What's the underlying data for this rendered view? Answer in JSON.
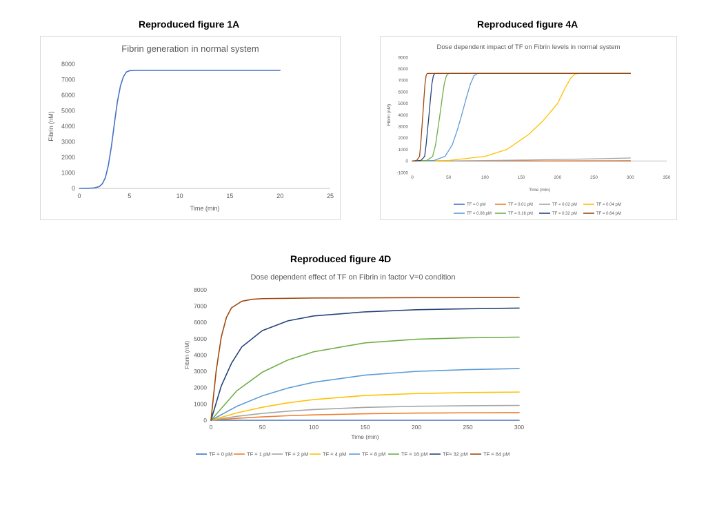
{
  "captions": {
    "fig1a": "Reproduced  figure 1A",
    "fig4a": "Reproduced  figure 4A",
    "fig4d": "Reproduced  figure 4D"
  },
  "chart_data": [
    {
      "id": "fig1a",
      "type": "line",
      "title": "Fibrin generation in normal system",
      "xlabel": "Time (min)",
      "ylabel": "Fibrin (nM)",
      "xlim": [
        0,
        25
      ],
      "ylim": [
        0,
        8000
      ],
      "xticks": [
        0,
        5,
        10,
        15,
        20,
        25
      ],
      "yticks": [
        0,
        1000,
        2000,
        3000,
        4000,
        5000,
        6000,
        7000,
        8000
      ],
      "grid": false,
      "legend": "none",
      "series": [
        {
          "name": "",
          "color": "#4472c4",
          "x": [
            0,
            1,
            1.5,
            2,
            2.3,
            2.6,
            2.9,
            3.2,
            3.5,
            3.8,
            4.1,
            4.4,
            4.7,
            5.0,
            5.5,
            6,
            8,
            10,
            15,
            20
          ],
          "y": [
            0,
            10,
            30,
            120,
            300,
            700,
            1500,
            2700,
            4200,
            5600,
            6600,
            7200,
            7500,
            7580,
            7600,
            7600,
            7600,
            7600,
            7600,
            7600
          ]
        }
      ]
    },
    {
      "id": "fig4a",
      "type": "line",
      "title": "Dose dependent impact of TF on Fibrin levels in normal system",
      "xlabel": "Time (min)",
      "ylabel": "Fibrin (nM)",
      "xlim": [
        0,
        350
      ],
      "ylim": [
        -1000,
        9000
      ],
      "xticks": [
        0,
        50,
        100,
        150,
        200,
        250,
        300,
        350
      ],
      "yticks": [
        -1000,
        0,
        1000,
        2000,
        3000,
        4000,
        5000,
        6000,
        7000,
        8000,
        9000
      ],
      "grid": false,
      "legend": "bottom",
      "series": [
        {
          "name": "TF = 0 pM",
          "color": "#4472c4",
          "x": [
            0,
            300
          ],
          "y": [
            0,
            0
          ]
        },
        {
          "name": "TF = 0.01 pM",
          "color": "#ed7d31",
          "x": [
            0,
            100,
            200,
            300
          ],
          "y": [
            0,
            5,
            15,
            30
          ]
        },
        {
          "name": "TF = 0.02 pM",
          "color": "#a5a5a5",
          "x": [
            0,
            50,
            100,
            150,
            200,
            250,
            300
          ],
          "y": [
            0,
            10,
            40,
            80,
            130,
            190,
            260
          ]
        },
        {
          "name": "TF = 0.04 pM",
          "color": "#ffc000",
          "x": [
            0,
            50,
            100,
            130,
            160,
            180,
            200,
            210,
            218,
            224,
            230,
            250,
            300
          ],
          "y": [
            0,
            50,
            400,
            1000,
            2300,
            3500,
            5000,
            6300,
            7200,
            7550,
            7600,
            7600,
            7600
          ]
        },
        {
          "name": "TF = 0.08 pM",
          "color": "#5b9bd5",
          "x": [
            0,
            30,
            45,
            55,
            62,
            68,
            74,
            80,
            85,
            90,
            100,
            200,
            300
          ],
          "y": [
            0,
            50,
            400,
            1400,
            2700,
            4000,
            5400,
            6700,
            7400,
            7600,
            7600,
            7600,
            7600
          ]
        },
        {
          "name": "TF = 0.16 pM",
          "color": "#70ad47",
          "x": [
            0,
            20,
            28,
            32,
            35,
            38,
            41,
            44,
            47,
            50,
            55,
            100,
            300
          ],
          "y": [
            0,
            50,
            400,
            1400,
            2700,
            4000,
            5400,
            6700,
            7400,
            7600,
            7600,
            7600,
            7600
          ]
        },
        {
          "name": "TF = 0.32 pM",
          "color": "#264478",
          "x": [
            0,
            12,
            17,
            19,
            21,
            23,
            25,
            27,
            29,
            31,
            35,
            100,
            300
          ],
          "y": [
            0,
            50,
            400,
            1400,
            2700,
            4000,
            5400,
            6700,
            7400,
            7600,
            7600,
            7600,
            7600
          ]
        },
        {
          "name": "TF = 0.64 pM",
          "color": "#9e480e",
          "x": [
            0,
            6,
            10,
            11.5,
            13,
            14.5,
            16,
            17.5,
            19,
            20.5,
            23,
            100,
            300
          ],
          "y": [
            0,
            50,
            400,
            1400,
            2700,
            4000,
            5400,
            6700,
            7400,
            7600,
            7600,
            7600,
            7600
          ]
        }
      ]
    },
    {
      "id": "fig4d",
      "type": "line",
      "title": "Dose dependent effect of TF on Fibrin in factor V=0 condition",
      "xlabel": "Time (min)",
      "ylabel": "Fibrin (nM)",
      "xlim": [
        0,
        300
      ],
      "ylim": [
        0,
        8000
      ],
      "xticks": [
        0,
        50,
        100,
        150,
        200,
        250,
        300
      ],
      "yticks": [
        0,
        1000,
        2000,
        3000,
        4000,
        5000,
        6000,
        7000,
        8000
      ],
      "grid": false,
      "legend": "bottom",
      "series": [
        {
          "name": "TF = 0 pM",
          "color": "#4472c4",
          "x": [
            0,
            300
          ],
          "y": [
            0,
            0
          ]
        },
        {
          "name": "TF = 1 pM",
          "color": "#ed7d31",
          "x": [
            0,
            25,
            50,
            75,
            100,
            150,
            200,
            250,
            300
          ],
          "y": [
            0,
            120,
            210,
            280,
            330,
            400,
            440,
            460,
            470
          ]
        },
        {
          "name": "TF = 2 pM",
          "color": "#a5a5a5",
          "x": [
            0,
            25,
            50,
            75,
            100,
            150,
            200,
            250,
            300
          ],
          "y": [
            0,
            240,
            420,
            560,
            660,
            790,
            860,
            890,
            910
          ]
        },
        {
          "name": "TF = 4 pM",
          "color": "#ffc000",
          "x": [
            0,
            25,
            50,
            75,
            100,
            150,
            200,
            250,
            300
          ],
          "y": [
            0,
            450,
            800,
            1070,
            1270,
            1520,
            1640,
            1700,
            1730
          ]
        },
        {
          "name": "TF = 8 pM",
          "color": "#5b9bd5",
          "x": [
            0,
            25,
            50,
            75,
            100,
            150,
            200,
            250,
            300
          ],
          "y": [
            0,
            850,
            1500,
            1980,
            2330,
            2770,
            3000,
            3110,
            3170
          ]
        },
        {
          "name": "TF = 16 pM",
          "color": "#70ad47",
          "x": [
            0,
            25,
            50,
            75,
            100,
            150,
            200,
            250,
            300
          ],
          "y": [
            0,
            1800,
            2950,
            3700,
            4200,
            4750,
            4970,
            5060,
            5100
          ]
        },
        {
          "name": "TF= 32 pM",
          "color": "#264478",
          "x": [
            0,
            10,
            20,
            30,
            50,
            75,
            100,
            150,
            200,
            250,
            300
          ],
          "y": [
            0,
            2100,
            3500,
            4500,
            5500,
            6100,
            6400,
            6650,
            6780,
            6840,
            6880
          ]
        },
        {
          "name": "TF = 64 pM",
          "color": "#9e480e",
          "x": [
            0,
            5,
            10,
            15,
            20,
            30,
            40,
            50,
            100,
            200,
            300
          ],
          "y": [
            0,
            3000,
            5100,
            6300,
            6900,
            7300,
            7420,
            7460,
            7500,
            7520,
            7530
          ]
        }
      ]
    }
  ]
}
